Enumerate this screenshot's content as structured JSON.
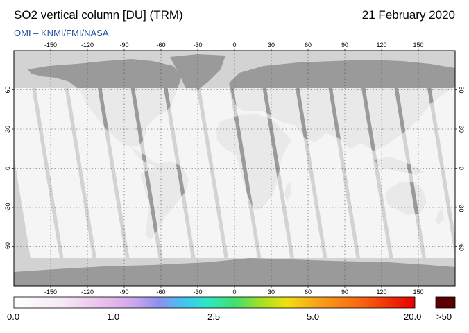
{
  "header": {
    "title": "SO2 vertical column [DU] (TRM)",
    "date": "21 February 2020",
    "credit": "OMI  –  KNMI/FMI/NASA"
  },
  "map": {
    "lon_ticks": [
      "-150",
      "-120",
      "-90",
      "-60",
      "-30",
      "0",
      "30",
      "60",
      "90",
      "120",
      "150"
    ],
    "lat_ticks": [
      "60",
      "30",
      "0",
      "-30",
      "-60"
    ],
    "colors": {
      "land": "#9a9a9a",
      "no_data": "#d3d3d3",
      "swath": "#ffffff",
      "coast": "#000000"
    }
  },
  "colorbar": {
    "labels": [
      "0.0",
      "1.0",
      "2.5",
      "5.0",
      "20.0"
    ],
    "overflow_label": ">50",
    "overflow_color": "#5a0000"
  }
}
